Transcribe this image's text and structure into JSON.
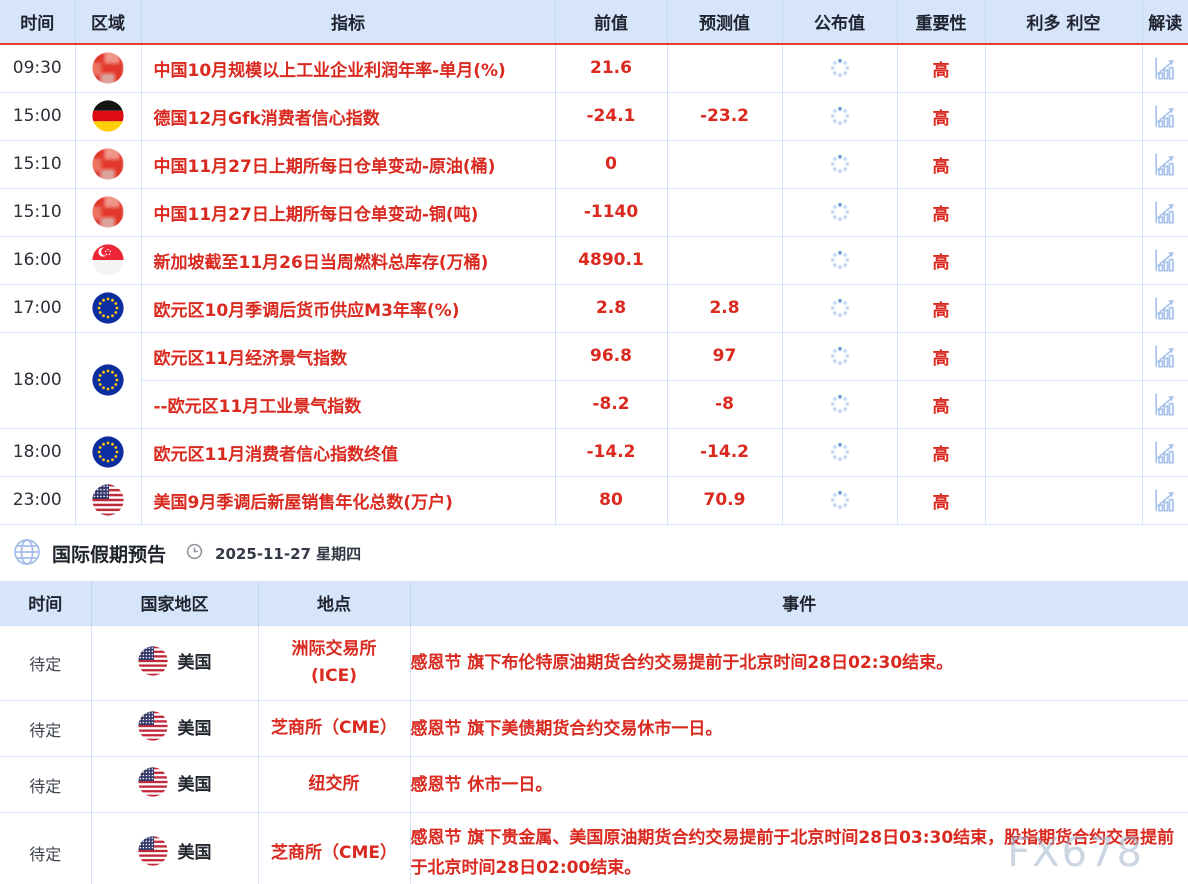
{
  "watermark": "FX678",
  "colors": {
    "accent_red": "#da291f",
    "header_bg": "#d7e5fa",
    "header_rule_red": "#e8392e",
    "cell_border_blue": "#d2e2f7",
    "icon_blue": "#a7c2ec"
  },
  "icons": {
    "loading": "loading-spinner-icon",
    "detail": "chart-detail-icon",
    "globe": "globe-icon",
    "clock": "clock-icon"
  },
  "calendar": {
    "headers": [
      "时间",
      "区域",
      "指标",
      "前值",
      "预测值",
      "公布值",
      "重要性",
      "利多 利空",
      "解读"
    ],
    "rows": [
      {
        "time": "09:30",
        "flag": "cn",
        "items": [
          {
            "indicator": "中国10月规模以上工业企业利润年率-单月(%)",
            "previous": "21.6",
            "forecast": "",
            "importance": "高"
          }
        ]
      },
      {
        "time": "15:00",
        "flag": "de",
        "items": [
          {
            "indicator": "德国12月Gfk消费者信心指数",
            "previous": "-24.1",
            "forecast": "-23.2",
            "importance": "高"
          }
        ]
      },
      {
        "time": "15:10",
        "flag": "cn",
        "items": [
          {
            "indicator": "中国11月27日上期所每日仓单变动-原油(桶)",
            "previous": "0",
            "forecast": "",
            "importance": "高"
          }
        ]
      },
      {
        "time": "15:10",
        "flag": "cn",
        "items": [
          {
            "indicator": "中国11月27日上期所每日仓单变动-铜(吨)",
            "previous": "-1140",
            "forecast": "",
            "importance": "高"
          }
        ]
      },
      {
        "time": "16:00",
        "flag": "sg",
        "items": [
          {
            "indicator": "新加坡截至11月26日当周燃料总库存(万桶)",
            "previous": "4890.1",
            "forecast": "",
            "importance": "高"
          }
        ]
      },
      {
        "time": "17:00",
        "flag": "eu",
        "items": [
          {
            "indicator": "欧元区10月季调后货币供应M3年率(%)",
            "previous": "2.8",
            "forecast": "2.8",
            "importance": "高"
          }
        ]
      },
      {
        "time": "18:00",
        "flag": "eu",
        "items": [
          {
            "indicator": "欧元区11月经济景气指数",
            "previous": "96.8",
            "forecast": "97",
            "importance": "高"
          },
          {
            "indicator": "--欧元区11月工业景气指数",
            "previous": "-8.2",
            "forecast": "-8",
            "importance": "高"
          }
        ]
      },
      {
        "time": "18:00",
        "flag": "eu",
        "items": [
          {
            "indicator": "欧元区11月消费者信心指数终值",
            "previous": "-14.2",
            "forecast": "-14.2",
            "importance": "高"
          }
        ]
      },
      {
        "time": "23:00",
        "flag": "us",
        "items": [
          {
            "indicator": "美国9月季调后新屋销售年化总数(万户)",
            "previous": "80",
            "forecast": "70.9",
            "importance": "高"
          }
        ]
      }
    ]
  },
  "holiday": {
    "title": "国际假期预告",
    "date": "2025-11-27 星期四",
    "headers": [
      "时间",
      "国家地区",
      "地点",
      "事件"
    ],
    "rows": [
      {
        "time": "待定",
        "flag": "us",
        "country": "美国",
        "location": "洲际交易所\n(ICE)",
        "event": "感恩节 旗下布伦特原油期货合约交易提前于北京时间28日02:30结束。"
      },
      {
        "time": "待定",
        "flag": "us",
        "country": "美国",
        "location": "芝商所（CME）",
        "event": "感恩节 旗下美债期货合约交易休市一日。"
      },
      {
        "time": "待定",
        "flag": "us",
        "country": "美国",
        "location": "纽交所",
        "event": "感恩节 休市一日。"
      },
      {
        "time": "待定",
        "flag": "us",
        "country": "美国",
        "location": "芝商所（CME）",
        "event": "感恩节 旗下贵金属、美国原油期货合约交易提前于北京时间28日03:30结束，股指期货合约交易提前于北京时间28日02:00结束。"
      }
    ]
  }
}
